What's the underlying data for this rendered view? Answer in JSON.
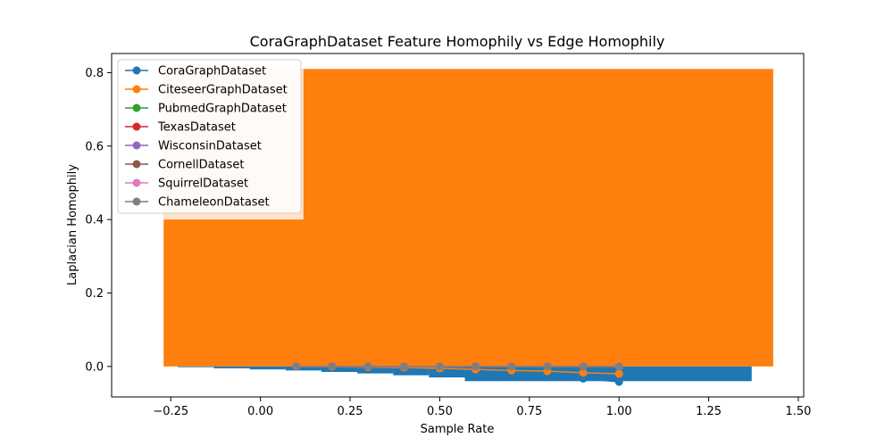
{
  "chart_data": {
    "type": "line",
    "title": "CoraGraphDataset Feature Homophily vs Edge Homophily",
    "xlabel": "Sample Rate",
    "ylabel": "Laplacian Homophily",
    "xlim": [
      -0.415,
      1.515
    ],
    "ylim": [
      -0.083,
      0.852
    ],
    "xticks": [
      "−0.25",
      "0.00",
      "0.25",
      "0.50",
      "0.75",
      "1.00",
      "1.25",
      "1.50"
    ],
    "xtick_values": [
      -0.25,
      0,
      0.25,
      0.5,
      0.75,
      1.0,
      1.25,
      1.5
    ],
    "yticks": [
      "0.0",
      "0.2",
      "0.4",
      "0.6",
      "0.8"
    ],
    "ytick_values": [
      0,
      0.2,
      0.4,
      0.6,
      0.8
    ],
    "legend_position": "upper-left",
    "colors": {
      "blue": "#1f77b4",
      "orange": "#ff7f0e",
      "orange_light": "#ffe4cc"
    },
    "area_fills": {
      "orange": {
        "x": [
          -0.27,
          1.43
        ],
        "top": 0.81
      },
      "blue_steps": [
        {
          "x": [
            -0.23,
            -0.13
          ],
          "y": -0.002
        },
        {
          "x": [
            -0.13,
            -0.03
          ],
          "y": -0.005
        },
        {
          "x": [
            -0.03,
            0.07
          ],
          "y": -0.008
        },
        {
          "x": [
            0.07,
            0.17
          ],
          "y": -0.011
        },
        {
          "x": [
            0.17,
            0.27
          ],
          "y": -0.015
        },
        {
          "x": [
            0.27,
            0.37
          ],
          "y": -0.019
        },
        {
          "x": [
            0.37,
            0.47
          ],
          "y": -0.024
        },
        {
          "x": [
            0.47,
            0.57
          ],
          "y": -0.03
        },
        {
          "x": [
            0.57,
            1.37
          ],
          "y": -0.04
        }
      ]
    },
    "x": [
      0.1,
      0.2,
      0.3,
      0.4,
      0.5,
      0.6,
      0.7,
      0.8,
      0.9,
      1.0
    ],
    "series": [
      {
        "name": "CoraGraphDataset",
        "color": "#1f77b4",
        "values": [
          0.0,
          -0.001,
          -0.002,
          -0.003,
          -0.005,
          -0.008,
          -0.012,
          -0.018,
          -0.033,
          -0.042
        ]
      },
      {
        "name": "CiteseerGraphDataset",
        "color": "#ff7f0e",
        "values": [
          0.0,
          -0.001,
          -0.002,
          -0.003,
          -0.005,
          -0.008,
          -0.011,
          -0.013,
          -0.017,
          -0.02
        ]
      },
      {
        "name": "PubmedGraphDataset",
        "color": "#2ca02c",
        "values": [
          0.0,
          0.0,
          0.0,
          0.0,
          0.0,
          0.0,
          0.0,
          0.0,
          0.0,
          0.0
        ]
      },
      {
        "name": "TexasDataset",
        "color": "#d62728",
        "values": [
          0.0,
          0.0,
          0.0,
          0.0,
          0.0,
          0.0,
          0.0,
          0.0,
          0.0,
          0.0
        ]
      },
      {
        "name": "WisconsinDataset",
        "color": "#9467bd",
        "values": [
          0.0,
          0.0,
          0.0,
          0.0,
          0.0,
          0.0,
          0.0,
          0.0,
          0.0,
          0.0
        ]
      },
      {
        "name": "CornellDataset",
        "color": "#8c564b",
        "values": [
          0.0,
          0.0,
          0.0,
          0.0,
          0.0,
          0.0,
          0.0,
          0.0,
          0.0,
          0.0
        ]
      },
      {
        "name": "SquirrelDataset",
        "color": "#e377c2",
        "values": [
          0.0,
          0.0,
          0.0,
          0.0,
          0.0,
          0.0,
          0.0,
          0.0,
          0.0,
          0.0
        ]
      },
      {
        "name": "ChameleonDataset",
        "color": "#7f7f7f",
        "values": [
          0.0,
          0.0,
          0.0,
          0.0,
          0.0,
          0.0,
          0.0,
          0.0,
          0.0,
          0.0
        ]
      }
    ]
  }
}
